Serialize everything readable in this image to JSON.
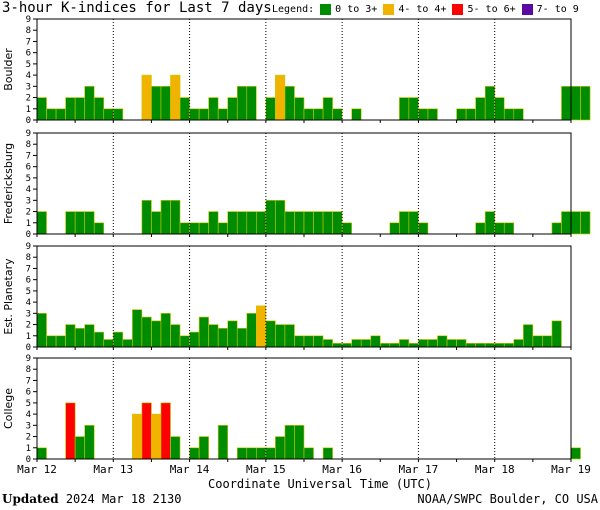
{
  "title": "3-hour K-indices for Last 7 days",
  "legend": {
    "label": "Legend:",
    "items": [
      {
        "label": "0 to 3+",
        "color": "#008c00"
      },
      {
        "label": "4- to 4+",
        "color": "#f0b400"
      },
      {
        "label": "5- to 6+",
        "color": "#ff0000"
      },
      {
        "label": "7- to 9",
        "color": "#5a0aa0"
      }
    ]
  },
  "footer": {
    "updated_label": "Updated",
    "updated_value": "2024 Mar 18 2130",
    "credit": "NOAA/SWPC Boulder, CO USA"
  },
  "chart_data": {
    "type": "bar",
    "xlabel": "Coordinate Universal Time (UTC)",
    "x_ticks": [
      "Mar 12",
      "Mar 13",
      "Mar 14",
      "Mar 15",
      "Mar 16",
      "Mar 17",
      "Mar 18",
      "Mar 19"
    ],
    "y_ticks": [
      "0",
      "1",
      "2",
      "3",
      "4",
      "5",
      "6",
      "7",
      "8",
      "9"
    ],
    "ylim": [
      0,
      9
    ],
    "colors": {
      "green": "#008c00",
      "yellow": "#f0b400",
      "red": "#ff0000",
      "purple": "#5a0aa0"
    },
    "panels": [
      {
        "name": "Boulder",
        "values": [
          2,
          1,
          1,
          2,
          2,
          3,
          2,
          1,
          1,
          0,
          0,
          4,
          3,
          3,
          4,
          2,
          1,
          1,
          2,
          1,
          2,
          3,
          3,
          0,
          2,
          4,
          3,
          2,
          1,
          1,
          2,
          1,
          0,
          1,
          0,
          0,
          0,
          0,
          2,
          2,
          1,
          1,
          0,
          0,
          1,
          1,
          2,
          3,
          2,
          1,
          1,
          0,
          0,
          0,
          0,
          3,
          3,
          3,
          0
        ]
      },
      {
        "name": "Fredericksburg",
        "values": [
          2,
          0,
          0,
          2,
          2,
          2,
          1,
          0,
          0,
          0,
          0,
          3,
          2,
          3,
          3,
          1,
          1,
          1,
          2,
          1,
          2,
          2,
          2,
          2,
          3,
          3,
          2,
          2,
          2,
          2,
          2,
          2,
          1,
          0,
          0,
          0,
          0,
          1,
          2,
          2,
          1,
          0,
          0,
          0,
          0,
          0,
          1,
          2,
          1,
          1,
          0,
          0,
          0,
          0,
          1,
          2,
          2,
          2,
          0
        ]
      },
      {
        "name": "Est. Planetary",
        "values": [
          3,
          1,
          1,
          2,
          1.67,
          2,
          1.33,
          0.67,
          1.33,
          0.67,
          3.33,
          2.67,
          2.33,
          3,
          2,
          1,
          1.33,
          2.67,
          2,
          1.67,
          2.33,
          1.67,
          3,
          3.67,
          2.33,
          2,
          2,
          1,
          1,
          1,
          0.67,
          0.33,
          0.33,
          0.67,
          0.67,
          1,
          0.33,
          0.33,
          0.67,
          0.33,
          0.67,
          0.67,
          1,
          0.67,
          0.67,
          0.33,
          0.33,
          0.33,
          0.33,
          0.33,
          0.67,
          2,
          1,
          1,
          2.33
        ]
      },
      {
        "name": "College",
        "values": [
          1,
          0,
          0,
          5,
          2,
          3,
          0,
          0,
          0,
          0,
          4,
          5,
          4,
          5,
          2,
          0,
          1,
          2,
          0,
          3,
          0,
          1,
          1,
          1,
          1,
          2,
          3,
          3,
          1,
          0,
          1,
          0,
          0,
          0,
          0,
          0,
          0,
          0,
          0,
          0,
          0,
          0,
          0,
          0,
          0,
          0,
          0,
          0,
          0,
          0,
          0,
          0,
          0,
          0,
          0,
          0,
          1,
          0
        ]
      }
    ]
  }
}
